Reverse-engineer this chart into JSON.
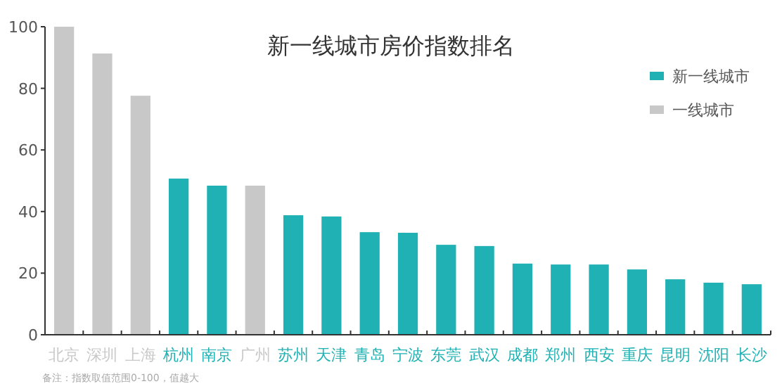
{
  "chart_data": {
    "type": "bar",
    "title": "新一线城市房价指数排名",
    "categories": [
      "北京",
      "深圳",
      "上海",
      "杭州",
      "南京",
      "广州",
      "苏州",
      "天津",
      "青岛",
      "宁波",
      "东莞",
      "武汉",
      "成都",
      "郑州",
      "西安",
      "重庆",
      "昆明",
      "沈阳",
      "长沙"
    ],
    "series": [
      {
        "name": "新一线城市",
        "color": "#1fb1b3",
        "values": [
          null,
          null,
          null,
          50.7,
          48.4,
          null,
          38.8,
          38.4,
          33.3,
          33.1,
          29.2,
          28.8,
          23.1,
          22.8,
          22.8,
          21.2,
          18.0,
          16.9,
          16.4
        ]
      },
      {
        "name": "一线城市",
        "color": "#c8c8c8",
        "values": [
          100,
          91.3,
          77.6,
          null,
          null,
          48.4,
          null,
          null,
          null,
          null,
          null,
          null,
          null,
          null,
          null,
          null,
          null,
          null,
          null
        ]
      }
    ],
    "ylim": [
      0,
      100
    ],
    "yticks": [
      0,
      20,
      40,
      60,
      80,
      100
    ],
    "grid": false,
    "legend": "top right",
    "annotations": [
      "备注：指数取值范围0-100，值越大"
    ]
  }
}
